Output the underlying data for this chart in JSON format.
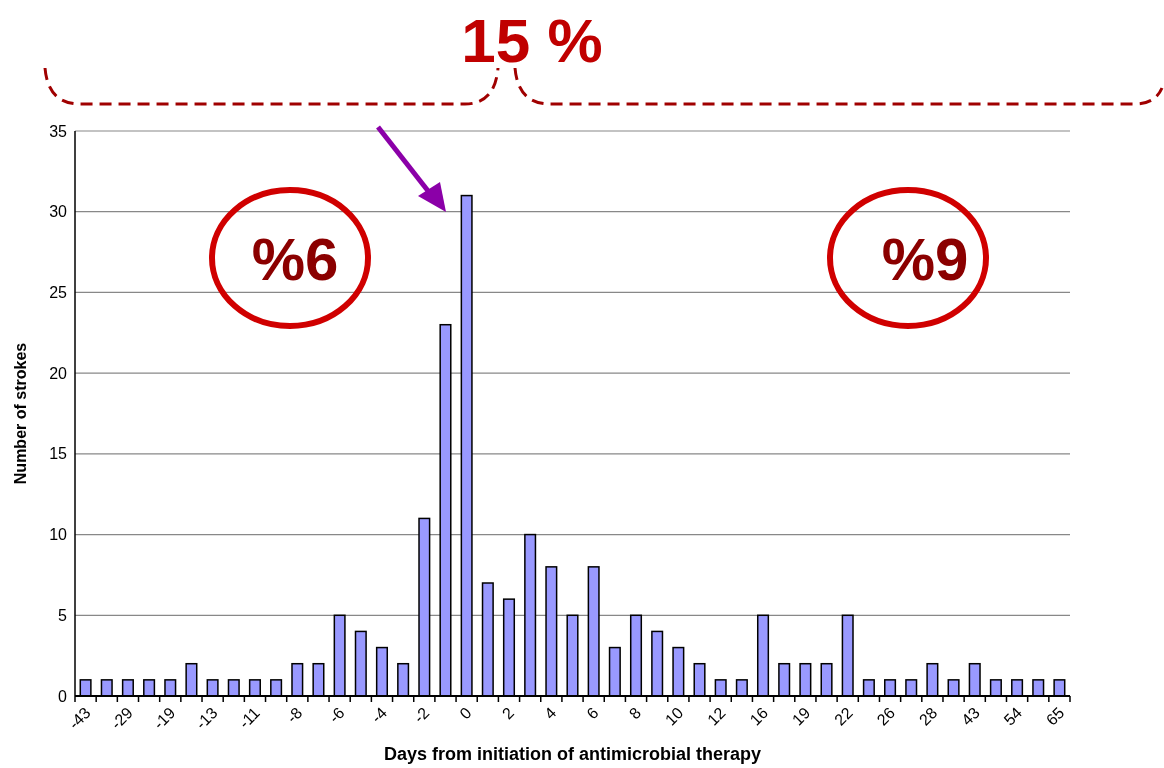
{
  "chart_data": {
    "type": "bar",
    "xlabel": "Days from initiation of antimicrobial therapy",
    "ylabel": "Number of strokes",
    "categories": [
      "-43",
      null,
      "-29",
      null,
      "-19",
      null,
      "-13",
      null,
      "-11",
      null,
      "-8",
      null,
      "-6",
      null,
      "-4",
      null,
      "-2",
      null,
      "0",
      null,
      "2",
      null,
      "4",
      null,
      "6",
      null,
      "8",
      null,
      "10",
      null,
      "12",
      null,
      "16",
      null,
      "19",
      null,
      "22",
      null,
      "26",
      null,
      "28",
      null,
      "43",
      null,
      "54",
      null,
      "65"
    ],
    "values": [
      1,
      1,
      1,
      1,
      1,
      2,
      1,
      1,
      1,
      1,
      2,
      2,
      5,
      4,
      3,
      2,
      11,
      23,
      31,
      7,
      6,
      10,
      8,
      5,
      8,
      3,
      5,
      4,
      3,
      2,
      1,
      1,
      5,
      2,
      2,
      2,
      5,
      1,
      1,
      1,
      2,
      1,
      2,
      1,
      1,
      1,
      1
    ],
    "color": "#9999ff",
    "ylim": [
      0,
      35
    ],
    "yticks": [
      0,
      5,
      10,
      15,
      20,
      25,
      30,
      35
    ],
    "grid": "y",
    "annotations": [
      "15 %",
      "%6",
      "%9"
    ]
  }
}
